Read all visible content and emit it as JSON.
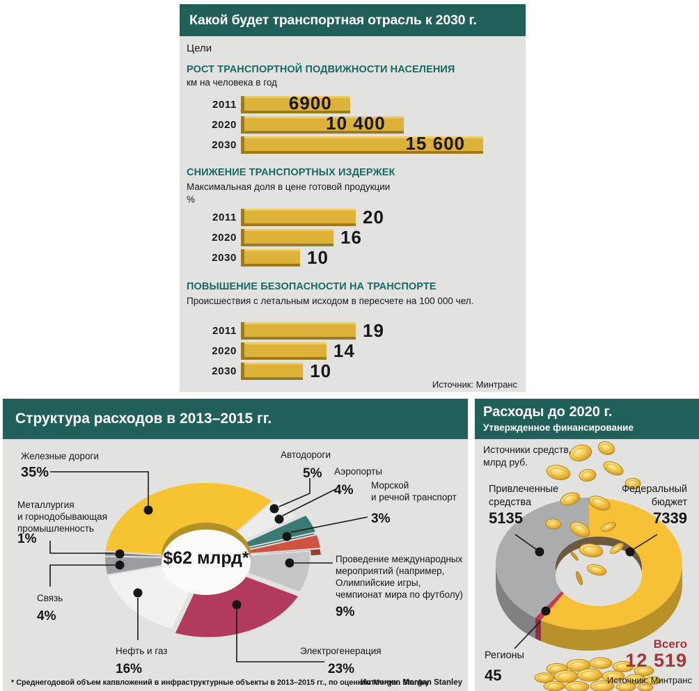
{
  "colors": {
    "header_teal": "#215f5a",
    "panel_bg": "#e2e2e1",
    "bar_gold": "#ddb23b",
    "bar_gold_dark": "#9c7a1e",
    "bar_gold_light": "#ecca67",
    "heading_teal": "#176964",
    "accent_red": "#a8323a",
    "text_dark": "#161616"
  },
  "panels": {
    "goals": {
      "title": "Какой будет транспортная отрасль к 2030 г.",
      "label": "Цели",
      "source": "Источник: Минтранс"
    },
    "structure": {
      "title": "Структура расходов в 2013–2015 гг.",
      "center_label": "$62 млрд*",
      "footnote": "* Среднегодовой объем капвложений в инфраструктурные объекты в 2013–2015 гг., по оценкам Morgan Stanley",
      "source": "Источник: Morgan Stanley"
    },
    "spending": {
      "title": "Расходы до 2020 г.",
      "subtitle": "Утвержденное финансирование",
      "unit": "Источники средств,\nмлрд руб.",
      "total_label": "Всего",
      "total_value": "12 519",
      "source": "Источник: Минтранс"
    }
  },
  "chart_data": [
    {
      "id": "mobility",
      "type": "bar",
      "title": "РОСТ ТРАНСПОРТНОЙ ПОДВИЖНОСТИ НАСЕЛЕНИЯ",
      "unit": "км на человека в год",
      "categories": [
        "2011",
        "2020",
        "2030"
      ],
      "values": [
        6900,
        10400,
        15600
      ],
      "value_labels": [
        "6900",
        "10 400",
        "15 600"
      ],
      "value_position": "inside",
      "bar_color": "#ddb23b"
    },
    {
      "id": "costs",
      "type": "bar",
      "title": "СНИЖЕНИЕ ТРАНСПОРТНЫХ ИЗДЕРЖЕК",
      "subtitle": "Максимальная доля в цене готовой продукции",
      "unit": "%",
      "categories": [
        "2011",
        "2020",
        "2030"
      ],
      "values": [
        20,
        16,
        10
      ],
      "value_labels": [
        "20",
        "16",
        "10"
      ],
      "value_position": "outside",
      "bar_color": "#ddb23b"
    },
    {
      "id": "safety",
      "type": "bar",
      "title": "ПОВЫШЕНИЕ БЕЗОПАСНОСТИ НА ТРАНСПОРТЕ",
      "subtitle": "Происшествия с летальным исходом в пересчете на 100 000 чел.",
      "categories": [
        "2011",
        "2020",
        "2030"
      ],
      "values": [
        19,
        14,
        10
      ],
      "value_labels": [
        "19",
        "14",
        "10"
      ],
      "value_position": "outside",
      "bar_color": "#ddb23b"
    },
    {
      "id": "structure",
      "type": "pie",
      "title": "Структура расходов в 2013–2015 гг.",
      "center_label": "$62 млрд*",
      "unit": "%",
      "slices": [
        {
          "label": "Железные дороги",
          "pct": 35,
          "color": "#f6c332"
        },
        {
          "label": "Автодороги",
          "pct": 5,
          "color": "#ececec"
        },
        {
          "label": "Аэропорты",
          "pct": 4,
          "color": "#3a7a72"
        },
        {
          "label": "Морской\nи речной транспорт",
          "pct": 3,
          "color": "#cd5440"
        },
        {
          "label": "Проведение международных\nмероприятий (например,\nОлимпийские игры,\nчемпионат мира по футболу)",
          "pct": 9,
          "color": "#c5c6c8"
        },
        {
          "label": "Электрогенерация",
          "pct": 23,
          "color": "#b23a5c"
        },
        {
          "label": "Нефть и газ",
          "pct": 16,
          "color": "#f1f1f1"
        },
        {
          "label": "Связь",
          "pct": 4,
          "color": "#9b9da0"
        },
        {
          "label": "Металлургия\nи горнодобывающая\nпромышленность",
          "pct": 1,
          "color": "#898b8d"
        }
      ]
    },
    {
      "id": "spending",
      "type": "pie",
      "title": "Расходы до 2020 г.",
      "unit": "млрд руб.",
      "slices": [
        {
          "label": "Федеральный бюджет",
          "value": 7339,
          "display": "7339",
          "color": "#f6c136"
        },
        {
          "label": "Регионы",
          "value": 45,
          "display": "45",
          "color": "#c23a52"
        },
        {
          "label": "Привлеченные средства",
          "value": 5135,
          "display": "5135",
          "color": "#aaacae"
        }
      ],
      "total": 12519,
      "total_display": "12 519"
    }
  ]
}
